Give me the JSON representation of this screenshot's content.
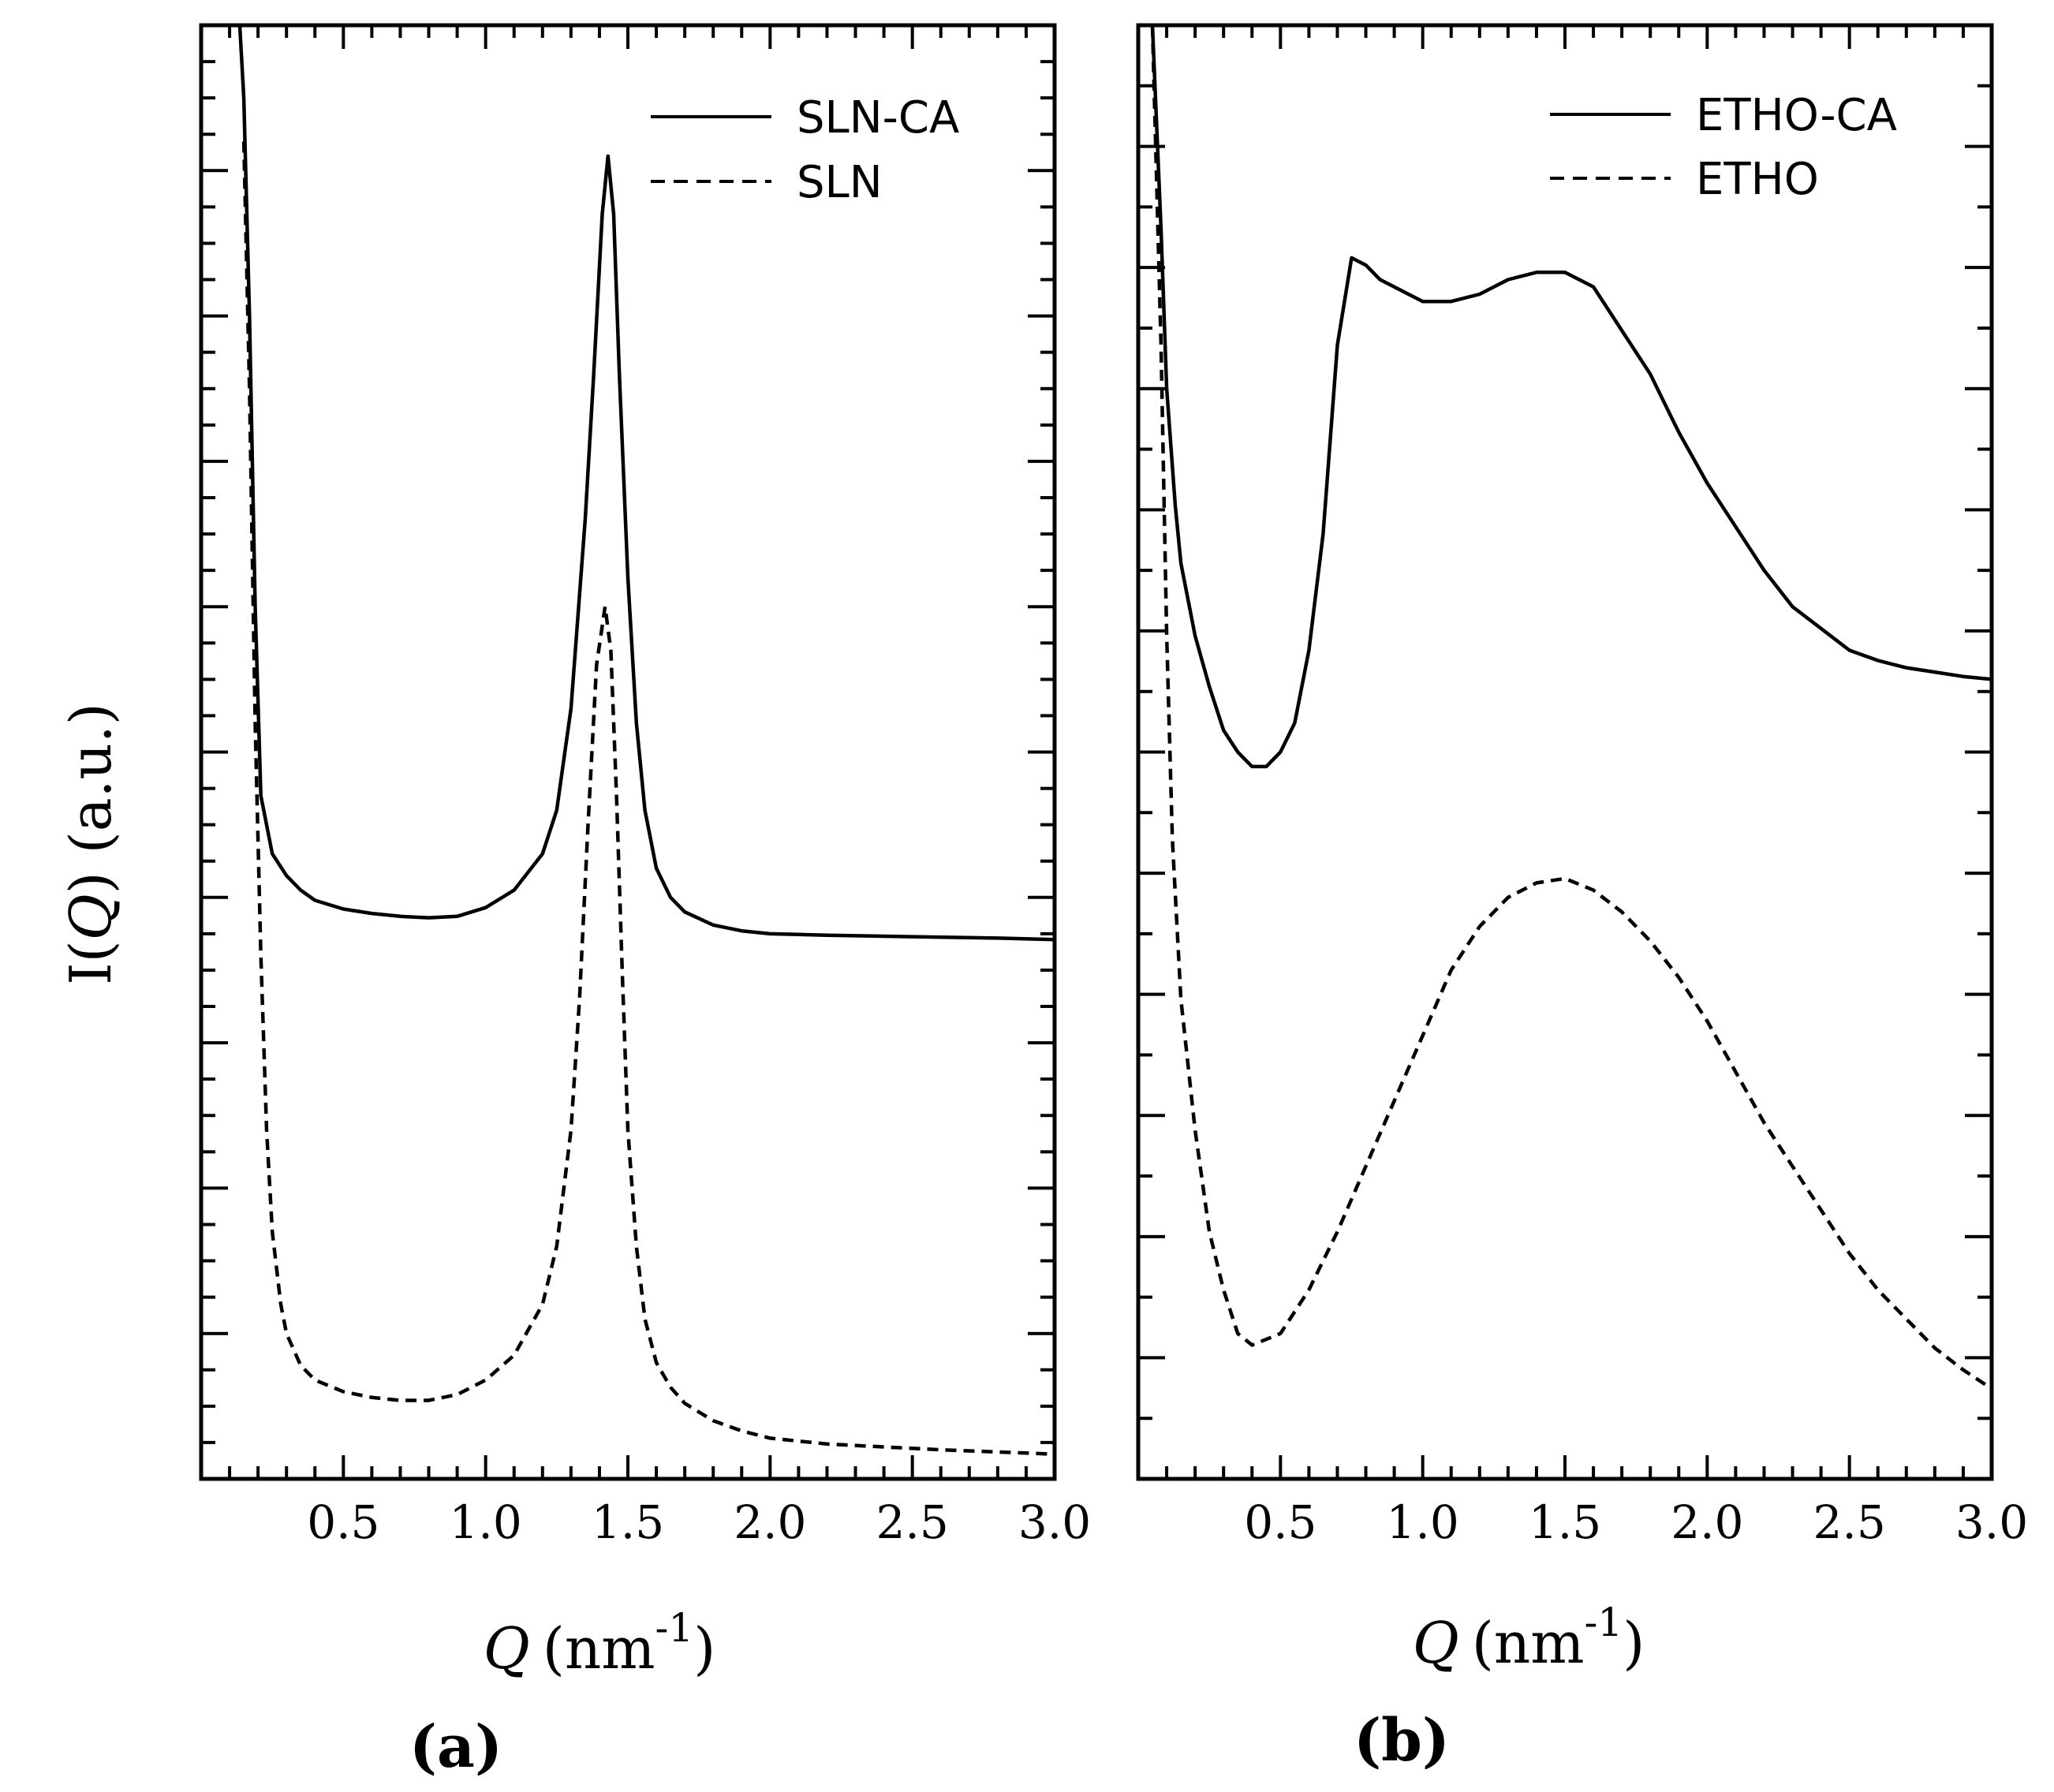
{
  "figure": {
    "ylabel_prefix": "I(",
    "ylabel_var": "Q",
    "ylabel_suffix": ") (a.u.)"
  },
  "chart_data": [
    {
      "type": "line",
      "panel_label": "(a)",
      "xlabel_var": "Q",
      "xlabel_unit": "(nm",
      "xlabel_exp": "-1",
      "xlabel_close": ")",
      "ylabel": "I(Q) (a.u.)",
      "xlim": [
        0.0,
        3.0
      ],
      "ylim": [
        0,
        1
      ],
      "xticks": [
        "0.5",
        "1.0",
        "1.5",
        "2.0",
        "2.5",
        "3.0"
      ],
      "y_tick_labels": "none",
      "legend": "top-right",
      "series": [
        {
          "name": "SLN-CA",
          "style": "solid",
          "x": [
            0.13,
            0.15,
            0.17,
            0.19,
            0.21,
            0.25,
            0.3,
            0.35,
            0.4,
            0.5,
            0.6,
            0.7,
            0.8,
            0.9,
            1.0,
            1.1,
            1.2,
            1.25,
            1.3,
            1.35,
            1.38,
            1.41,
            1.43,
            1.45,
            1.47,
            1.5,
            1.53,
            1.56,
            1.6,
            1.65,
            1.7,
            1.8,
            1.9,
            2.0,
            2.2,
            2.5,
            2.8,
            3.0
          ],
          "y": [
            1.02,
            0.95,
            0.8,
            0.6,
            0.47,
            0.43,
            0.415,
            0.405,
            0.398,
            0.392,
            0.389,
            0.387,
            0.386,
            0.387,
            0.393,
            0.405,
            0.43,
            0.46,
            0.53,
            0.66,
            0.76,
            0.87,
            0.91,
            0.87,
            0.76,
            0.62,
            0.52,
            0.46,
            0.42,
            0.4,
            0.39,
            0.381,
            0.377,
            0.375,
            0.374,
            0.373,
            0.372,
            0.371
          ]
        },
        {
          "name": "SLN",
          "style": "dashed",
          "x": [
            0.15,
            0.17,
            0.19,
            0.21,
            0.23,
            0.25,
            0.28,
            0.3,
            0.35,
            0.4,
            0.5,
            0.6,
            0.7,
            0.8,
            0.9,
            1.0,
            1.1,
            1.2,
            1.25,
            1.3,
            1.33,
            1.36,
            1.39,
            1.42,
            1.44,
            1.46,
            1.48,
            1.5,
            1.53,
            1.56,
            1.6,
            1.65,
            1.7,
            1.8,
            1.9,
            2.0,
            2.2,
            2.4,
            2.6,
            3.0
          ],
          "y": [
            0.92,
            0.75,
            0.52,
            0.36,
            0.24,
            0.17,
            0.12,
            0.1,
            0.078,
            0.068,
            0.06,
            0.056,
            0.054,
            0.054,
            0.058,
            0.068,
            0.085,
            0.12,
            0.16,
            0.24,
            0.33,
            0.45,
            0.56,
            0.6,
            0.57,
            0.47,
            0.35,
            0.24,
            0.16,
            0.11,
            0.08,
            0.063,
            0.052,
            0.04,
            0.033,
            0.028,
            0.024,
            0.022,
            0.02,
            0.017
          ]
        }
      ]
    },
    {
      "type": "line",
      "panel_label": "(b)",
      "xlabel_var": "Q",
      "xlabel_unit": "(nm",
      "xlabel_exp": "-1",
      "xlabel_close": ")",
      "ylabel": "I(Q) (a.u.)",
      "xlim": [
        0.0,
        3.0
      ],
      "ylim": [
        0,
        1
      ],
      "xticks": [
        "0.5",
        "1.0",
        "1.5",
        "2.0",
        "2.5",
        "3.0"
      ],
      "y_tick_labels": "none",
      "legend": "top-right",
      "series": [
        {
          "name": "ETHO-CA",
          "style": "solid",
          "x": [
            0.05,
            0.08,
            0.1,
            0.13,
            0.15,
            0.2,
            0.25,
            0.3,
            0.35,
            0.4,
            0.45,
            0.5,
            0.55,
            0.6,
            0.65,
            0.7,
            0.75,
            0.8,
            0.85,
            0.9,
            0.95,
            1.0,
            1.1,
            1.2,
            1.3,
            1.4,
            1.5,
            1.6,
            1.7,
            1.8,
            1.85,
            1.9,
            2.0,
            2.1,
            2.2,
            2.3,
            2.4,
            2.5,
            2.6,
            2.7,
            2.8,
            2.9,
            3.0
          ],
          "y": [
            1.0,
            0.86,
            0.75,
            0.67,
            0.63,
            0.58,
            0.545,
            0.515,
            0.5,
            0.49,
            0.49,
            0.5,
            0.52,
            0.57,
            0.65,
            0.78,
            0.84,
            0.835,
            0.825,
            0.82,
            0.815,
            0.81,
            0.81,
            0.815,
            0.825,
            0.83,
            0.83,
            0.82,
            0.79,
            0.76,
            0.74,
            0.72,
            0.685,
            0.655,
            0.625,
            0.6,
            0.585,
            0.57,
            0.563,
            0.558,
            0.555,
            0.552,
            0.55
          ]
        },
        {
          "name": "ETHO",
          "style": "dashed",
          "x": [
            0.05,
            0.08,
            0.1,
            0.12,
            0.15,
            0.2,
            0.25,
            0.3,
            0.35,
            0.4,
            0.5,
            0.6,
            0.7,
            0.8,
            0.9,
            1.0,
            1.1,
            1.2,
            1.3,
            1.4,
            1.5,
            1.6,
            1.7,
            1.8,
            1.9,
            2.0,
            2.1,
            2.2,
            2.3,
            2.4,
            2.5,
            2.6,
            2.7,
            2.8,
            2.9,
            3.0
          ],
          "y": [
            1.0,
            0.78,
            0.58,
            0.44,
            0.33,
            0.24,
            0.17,
            0.13,
            0.1,
            0.092,
            0.1,
            0.13,
            0.17,
            0.215,
            0.26,
            0.305,
            0.35,
            0.38,
            0.4,
            0.41,
            0.413,
            0.405,
            0.39,
            0.37,
            0.345,
            0.315,
            0.28,
            0.245,
            0.215,
            0.185,
            0.155,
            0.13,
            0.11,
            0.09,
            0.075,
            0.062
          ]
        }
      ]
    }
  ]
}
